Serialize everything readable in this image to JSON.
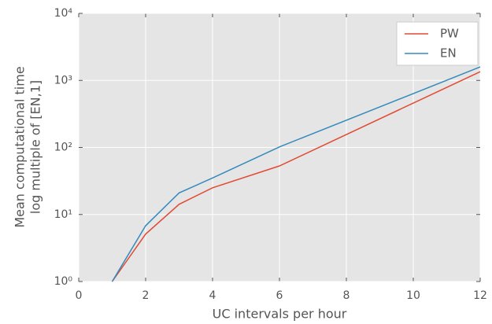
{
  "chart_data": {
    "type": "line",
    "xlabel": "UC intervals per hour",
    "ylabel": [
      "Mean computational time",
      "log multiple of [EN,1]"
    ],
    "x": [
      1,
      2,
      3,
      4,
      6,
      12
    ],
    "series": [
      {
        "name": "PW",
        "color": "#e24a33",
        "values": [
          1,
          5.1,
          14.2,
          25,
          53,
          1350
        ]
      },
      {
        "name": "EN",
        "color": "#348abd",
        "values": [
          1,
          6.8,
          21,
          35,
          102,
          1590
        ]
      }
    ],
    "xlim": [
      0,
      12
    ],
    "xticks": [
      0,
      2,
      4,
      6,
      8,
      10,
      12
    ],
    "ylim": [
      1,
      10000
    ],
    "log_y": true,
    "yticks": [
      {
        "value": 1,
        "label": "10⁰"
      },
      {
        "value": 10,
        "label": "10¹"
      },
      {
        "value": 100,
        "label": "10²"
      },
      {
        "value": 1000,
        "label": "10³"
      },
      {
        "value": 10000,
        "label": "10⁴"
      }
    ],
    "grid": true,
    "legend": "upper right"
  }
}
